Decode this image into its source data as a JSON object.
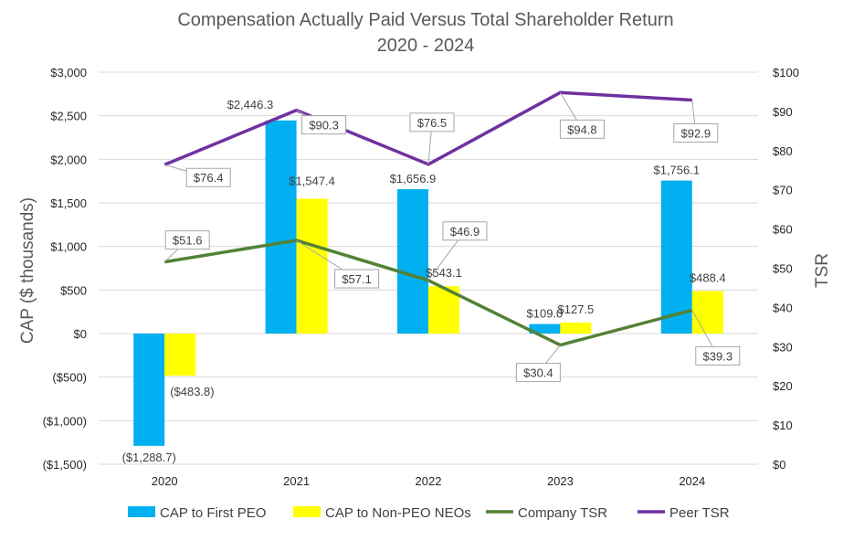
{
  "chart_data": {
    "type": "bar",
    "title_line1": "Compensation Actually Paid Versus Total Shareholder Return",
    "title_line2": "2020 - 2024",
    "ylabel": "CAP ($ thousands)",
    "y2label": "TSR",
    "categories": [
      "2020",
      "2021",
      "2022",
      "2023",
      "2024"
    ],
    "ylim": [
      -1500,
      3000
    ],
    "y2lim": [
      0,
      100
    ],
    "yticks": [
      {
        "value": 3000,
        "label": "$3,000"
      },
      {
        "value": 2500,
        "label": "$2,500"
      },
      {
        "value": 2000,
        "label": "$2,000"
      },
      {
        "value": 1500,
        "label": "$1,500"
      },
      {
        "value": 1000,
        "label": "$1,000"
      },
      {
        "value": 500,
        "label": "$500"
      },
      {
        "value": 0,
        "label": "$0"
      },
      {
        "value": -500,
        "label": "($500)"
      },
      {
        "value": -1000,
        "label": "($1,000)"
      },
      {
        "value": -1500,
        "label": "($1,500)"
      }
    ],
    "y2ticks": [
      {
        "value": 100,
        "label": "$100"
      },
      {
        "value": 90,
        "label": "$90"
      },
      {
        "value": 80,
        "label": "$80"
      },
      {
        "value": 70,
        "label": "$70"
      },
      {
        "value": 60,
        "label": "$60"
      },
      {
        "value": 50,
        "label": "$50"
      },
      {
        "value": 40,
        "label": "$40"
      },
      {
        "value": 30,
        "label": "$30"
      },
      {
        "value": 20,
        "label": "$20"
      },
      {
        "value": 10,
        "label": "$10"
      },
      {
        "value": 0,
        "label": "$0"
      }
    ],
    "bar_series": [
      {
        "name": "CAP to First PEO",
        "color": "#00b0f0",
        "values": [
          -1288.7,
          2446.3,
          1656.9,
          109.0,
          1756.1
        ],
        "labels": [
          "($1,288.7)",
          "$2,446.3",
          "$1,656.9",
          "$109.0",
          "$1,756.1"
        ]
      },
      {
        "name": "CAP to Non-PEO NEOs",
        "color": "#ffff00",
        "values": [
          -483.8,
          1547.4,
          543.1,
          127.5,
          488.4
        ],
        "labels": [
          "($483.8)",
          "$1,547.4",
          "$543.1",
          "$127.5",
          "$488.4"
        ]
      }
    ],
    "line_series": [
      {
        "name": "Company TSR",
        "color": "#538135",
        "values": [
          51.6,
          57.1,
          46.9,
          30.4,
          39.3
        ],
        "labels": [
          "$51.6",
          "$57.1",
          "$46.9",
          "$30.4",
          "$39.3"
        ]
      },
      {
        "name": "Peer TSR",
        "color": "#7030a0",
        "values": [
          76.4,
          90.3,
          76.5,
          94.8,
          92.9
        ],
        "labels": [
          "$76.4",
          "$90.3",
          "$76.5",
          "$94.8",
          "$92.9"
        ]
      }
    ],
    "legend": [
      "CAP to First PEO",
      "CAP to Non-PEO NEOs",
      "Company TSR",
      "Peer TSR"
    ],
    "legend_position": "bottom",
    "grid": true
  }
}
